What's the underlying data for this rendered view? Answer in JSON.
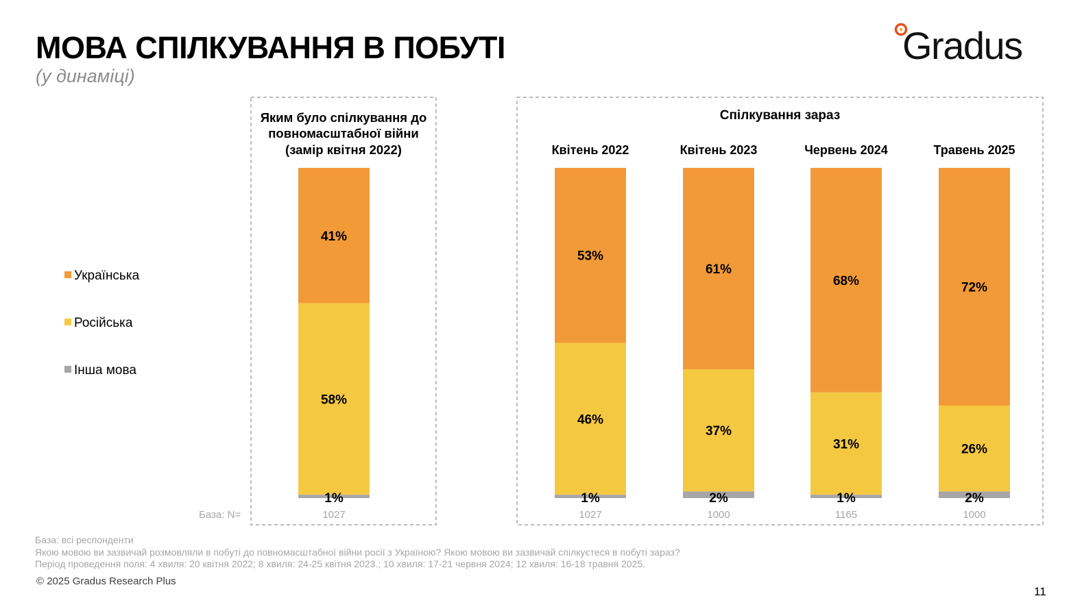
{
  "header": {
    "title": "МОВА СПІЛКУВАННЯ В ПОБУТІ",
    "subtitle": "(у динаміці)",
    "logo_text": "Gradus"
  },
  "legend": [
    {
      "label": "Українська",
      "color": "#F29A38"
    },
    {
      "label": "Російська",
      "color": "#F5C842"
    },
    {
      "label": "Інша мова",
      "color": "#A6A6A6"
    }
  ],
  "base_label": "База: N=",
  "chart_data": {
    "type": "bar",
    "stacked": true,
    "groups": [
      {
        "title_lines": [
          "Яким було спілкування до",
          "повномасштабної війни",
          "(замір квітня 2022)"
        ],
        "bars": [
          {
            "label": "",
            "base": "1027",
            "values": [
              41,
              58,
              1
            ],
            "labels": [
              "41%",
              "58%",
              "1%"
            ]
          }
        ]
      },
      {
        "title_lines": [
          "Спілкування зараз"
        ],
        "bars": [
          {
            "label": "Квітень 2022",
            "base": "1027",
            "values": [
              53,
              46,
              1
            ],
            "labels": [
              "53%",
              "46%",
              "1%"
            ]
          },
          {
            "label": "Квітень 2023",
            "base": "1000",
            "values": [
              61,
              37,
              2
            ],
            "labels": [
              "61%",
              "37%",
              "2%"
            ]
          },
          {
            "label": "Червень 2024",
            "base": "1165",
            "values": [
              68,
              31,
              1
            ],
            "labels": [
              "68%",
              "31%",
              "1%"
            ]
          },
          {
            "label": "Травень 2025",
            "base": "1000",
            "values": [
              72,
              26,
              2
            ],
            "labels": [
              "72%",
              "26%",
              "2%"
            ]
          }
        ]
      }
    ],
    "series": [
      {
        "name": "Українська",
        "color": "#F29A38"
      },
      {
        "name": "Російська",
        "color": "#F5C842"
      },
      {
        "name": "Інша мова",
        "color": "#A6A6A6"
      }
    ],
    "ylim": [
      0,
      100
    ],
    "grid": false,
    "legend_position": "left"
  },
  "footnotes": [
    "База: всі респонденти",
    "Якою мовою ви зазвичай розмовляли в побуті до повномасштабної війни росії з Україною? Якою мовою ви зазвичай спілкуєтеся в побуті зараз?",
    "Період проведення поля: 4 хвиля: 20 квітня 2022; 8 хвиля: 24-25 квітня 2023.; 10 хвиля: 17-21 червня 2024; 12 хвиля: 16-18 травня 2025."
  ],
  "copyright": "© 2025 Gradus Research Plus",
  "page_number": "11"
}
